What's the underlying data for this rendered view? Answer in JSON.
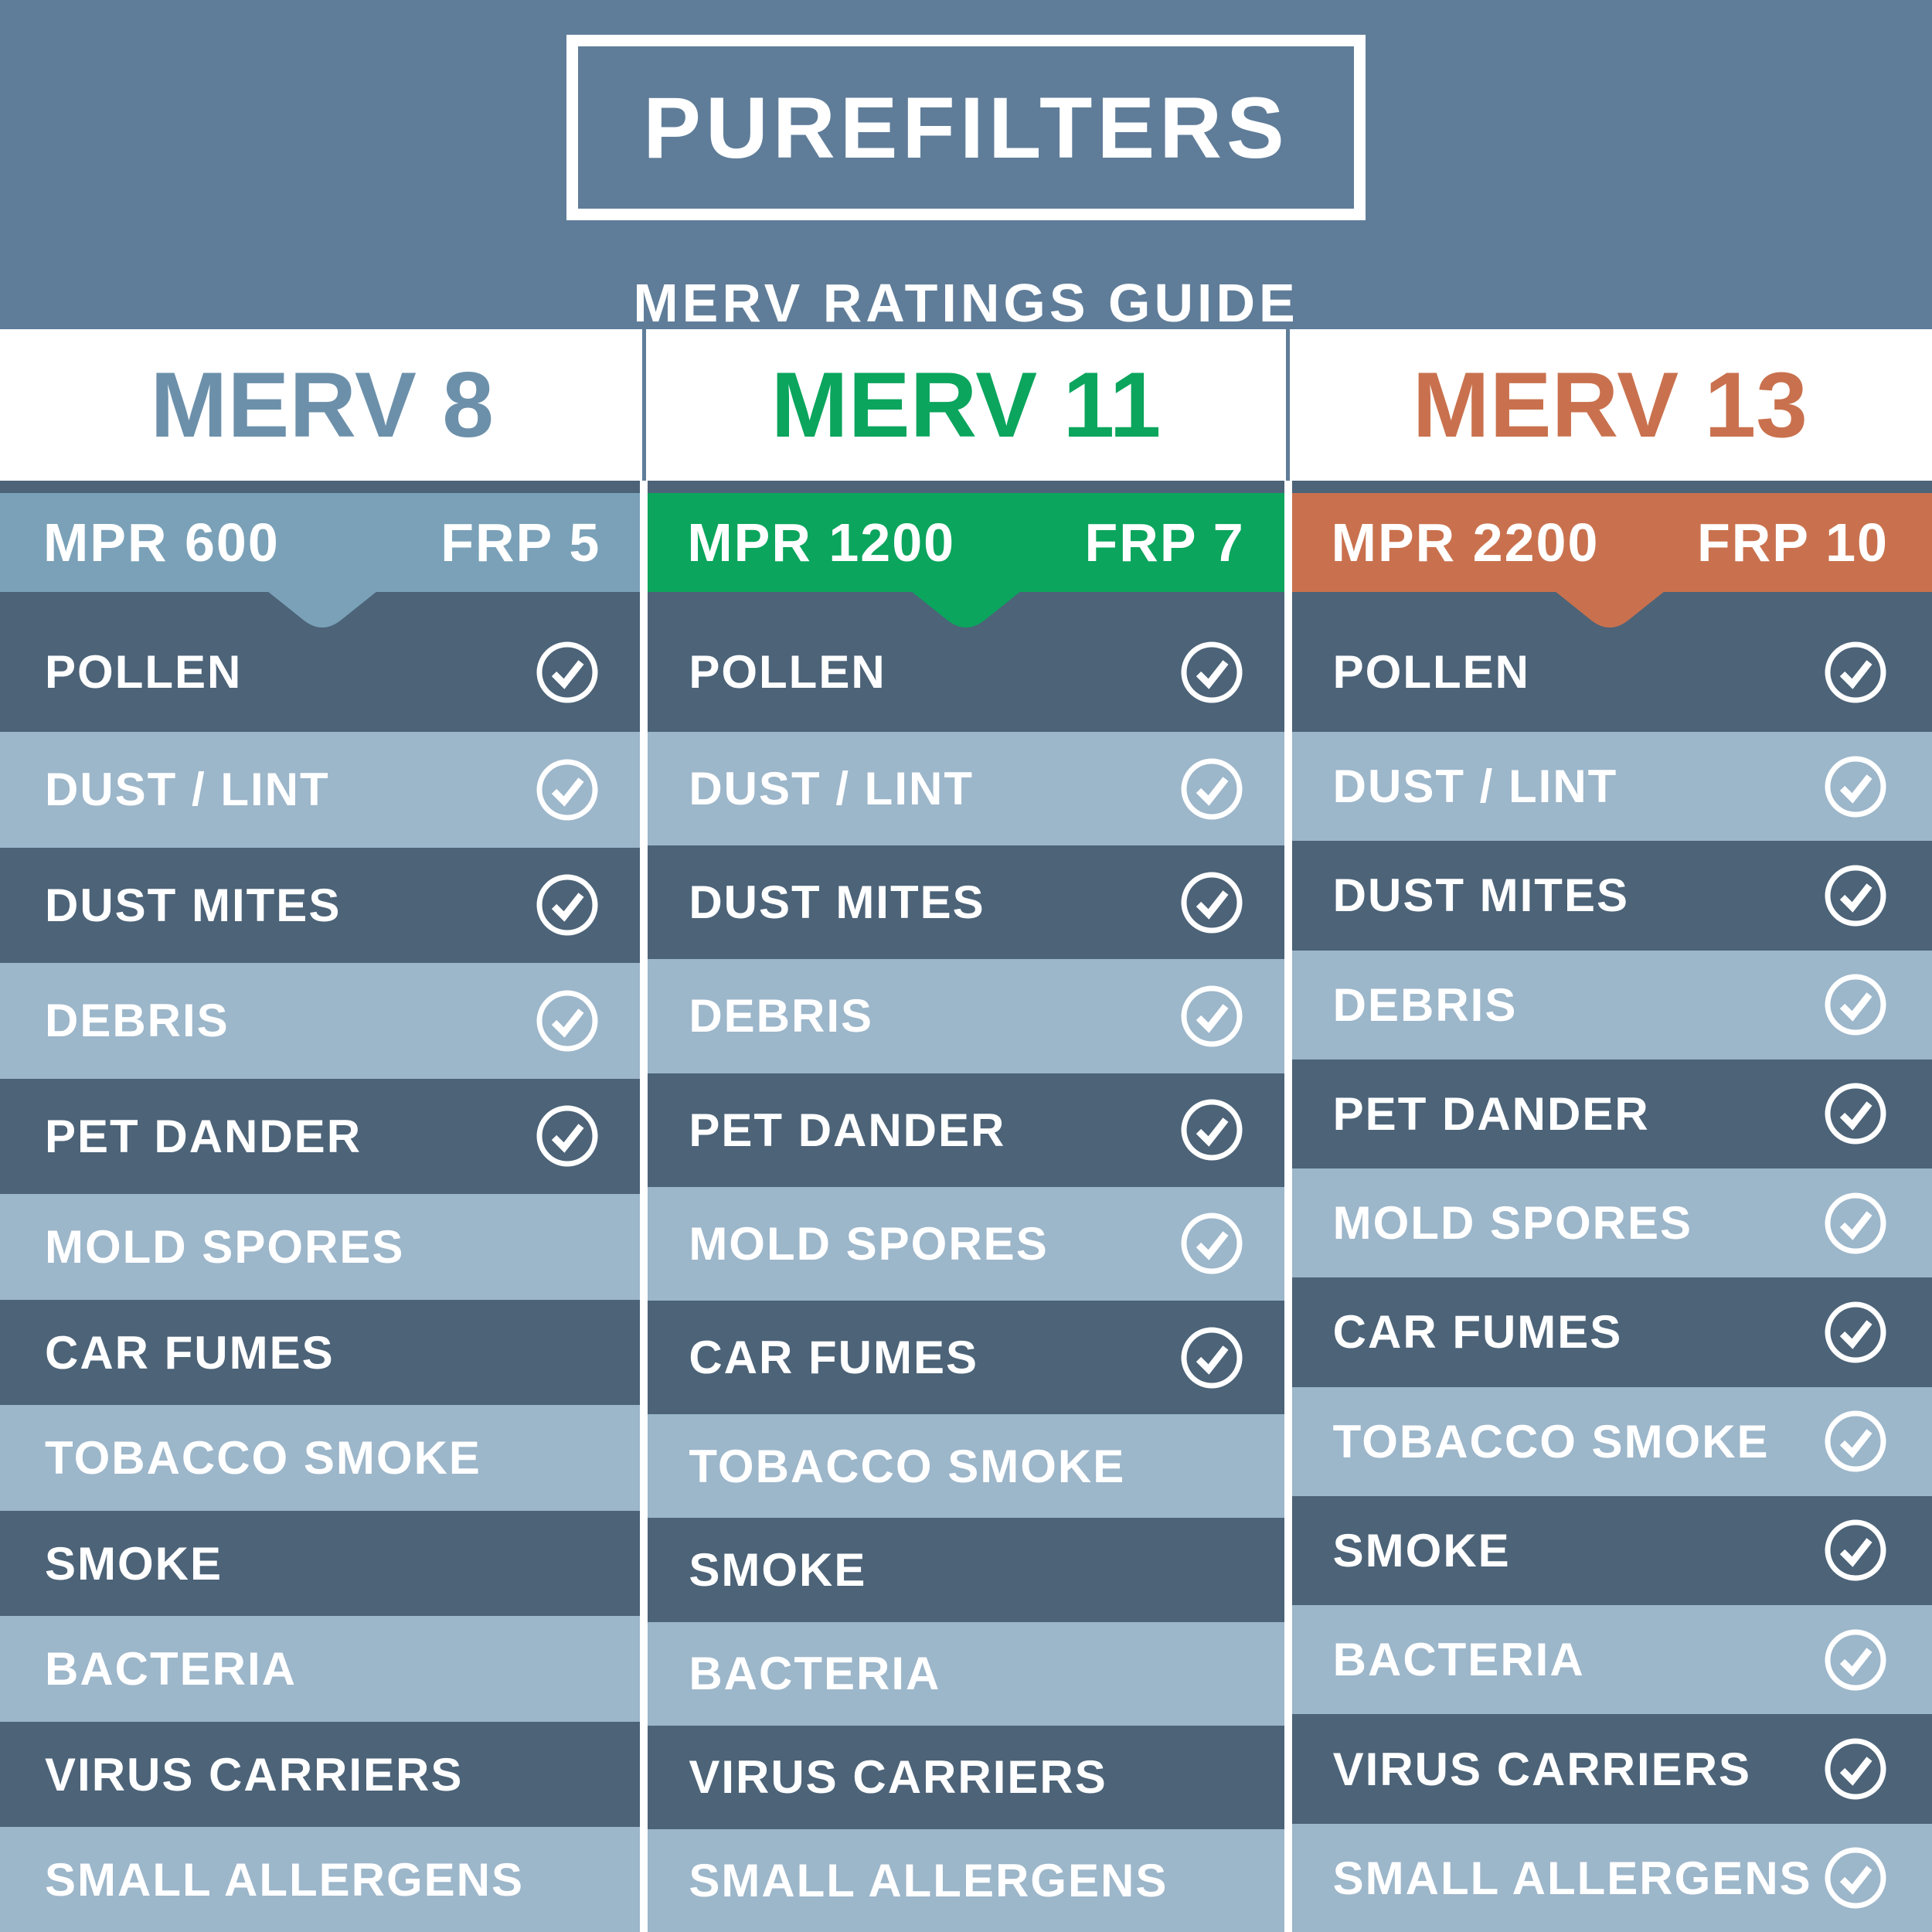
{
  "header": {
    "brand": "PUREFILTERS",
    "subtitle": "MERV RATINGS GUIDE"
  },
  "colors": {
    "background": "#5F7D99",
    "white": "#FFFFFF",
    "dark_row": "#4C6378",
    "light_row": "#9CB6CA",
    "merv8_accent": "#7AA1B8",
    "merv8_title": "#6C90AA",
    "merv11_accent": "#0BA55D",
    "merv13_accent": "#C9714E"
  },
  "contaminants": [
    "POLLEN",
    "DUST / LINT",
    "DUST MITES",
    "DEBRIS",
    "PET DANDER",
    "MOLD SPORES",
    "CAR FUMES",
    "TOBACCO SMOKE",
    "SMOKE",
    "BACTERIA",
    "VIRUS CARRIERS",
    "SMALL ALLERGENS"
  ],
  "columns": [
    {
      "id": "merv-8",
      "title": "MERV 8",
      "mpr": "MPR 600",
      "frp": "FRP 5",
      "accent": "#7AA1B8",
      "title_color": "#6C90AA",
      "checked": [
        true,
        true,
        true,
        true,
        true,
        false,
        false,
        false,
        false,
        false,
        false,
        false
      ]
    },
    {
      "id": "merv-11",
      "title": "MERV 11",
      "mpr": "MPR 1200",
      "frp": "FRP 7",
      "accent": "#0BA55D",
      "title_color": "#0BA55D",
      "checked": [
        true,
        true,
        true,
        true,
        true,
        true,
        true,
        false,
        false,
        false,
        false,
        false
      ]
    },
    {
      "id": "merv-13",
      "title": "MERV 13",
      "mpr": "MPR 2200",
      "frp": "FRP 10",
      "accent": "#C9714E",
      "title_color": "#C9714E",
      "checked": [
        true,
        true,
        true,
        true,
        true,
        true,
        true,
        true,
        true,
        true,
        true,
        true
      ]
    }
  ],
  "icons": {
    "check": "check-circle"
  }
}
